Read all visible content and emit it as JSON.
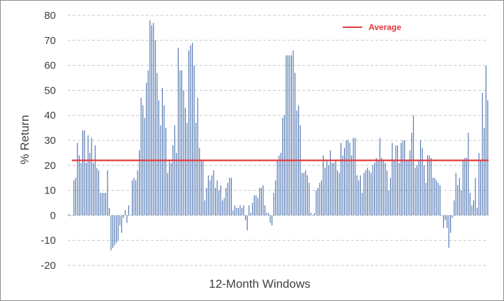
{
  "chart_data": {
    "type": "bar",
    "xlabel": "12-Month Windows",
    "ylabel": "% Return",
    "ylim": [
      -20,
      80
    ],
    "yticks": [
      -20,
      -10,
      0,
      10,
      20,
      30,
      40,
      50,
      60,
      70,
      80
    ],
    "grid": "horizontal dashed",
    "legend_position": "top-right",
    "colors": {
      "bars": "#4a72b0",
      "average": "#e8393d",
      "grid": "#c8c8c8",
      "text": "#404040"
    },
    "series": [
      {
        "name": "",
        "kind": "bar",
        "values": [
          0.5,
          -0.3,
          0,
          14,
          15,
          29,
          24,
          21,
          34,
          34,
          21,
          32,
          25,
          31,
          21,
          28,
          19,
          18,
          9,
          9,
          9,
          9,
          18,
          3,
          -14,
          -13,
          -12,
          -11,
          -10,
          -4,
          -7,
          -1,
          2,
          -3,
          4,
          0,
          14,
          15,
          14,
          18,
          26,
          47,
          44,
          39,
          53,
          58,
          78,
          76,
          77,
          70,
          57,
          46,
          36,
          51,
          44,
          35,
          17,
          22,
          21,
          28,
          36,
          25,
          67,
          58,
          58,
          50,
          43,
          37,
          66,
          68,
          69,
          60,
          37,
          47,
          27,
          22,
          22,
          6,
          11,
          16,
          14,
          16,
          18,
          11,
          14,
          10,
          12,
          6,
          7,
          11,
          13,
          15,
          15,
          2,
          4,
          3,
          3,
          4,
          3,
          4,
          -2,
          -6,
          4,
          1,
          5,
          8,
          8,
          7,
          11,
          11,
          12,
          4,
          1,
          1,
          -3,
          -4,
          9,
          14,
          22,
          24,
          25,
          39,
          40,
          64,
          64,
          64,
          64,
          66,
          57,
          42,
          44,
          36,
          17,
          17,
          18,
          16,
          13,
          1,
          0,
          1,
          10,
          11,
          13,
          14,
          24,
          19,
          22,
          20,
          26,
          21,
          21,
          22,
          18,
          17,
          29,
          24,
          27,
          30,
          30,
          29,
          24,
          31,
          31,
          16,
          14,
          16,
          9,
          17,
          18,
          19,
          18,
          17,
          20,
          21,
          23,
          22,
          31,
          23,
          22,
          21,
          18,
          10,
          15,
          29,
          22,
          28,
          28,
          21,
          29,
          30,
          30,
          22,
          22,
          26,
          33,
          40,
          19,
          20,
          22,
          30,
          27,
          20,
          13,
          24,
          24,
          23,
          15,
          15,
          14,
          13,
          12,
          0,
          -5,
          -2,
          -5,
          -13,
          -7,
          -1,
          6,
          17,
          12,
          15,
          10,
          22,
          23,
          23,
          33,
          9,
          4,
          6,
          15,
          3,
          25,
          22,
          49,
          35,
          60,
          46
        ]
      },
      {
        "name": "Average",
        "kind": "line",
        "value": 22
      }
    ]
  }
}
